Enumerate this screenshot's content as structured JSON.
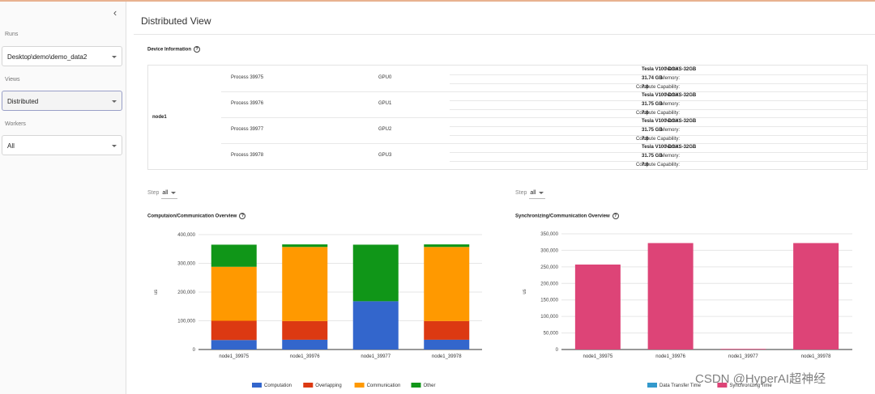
{
  "sidebar": {
    "collapse_icon": "chevron-left-icon",
    "runs_label": "Runs",
    "runs_value": "Desktop\\demo\\demo_data2",
    "views_label": "Views",
    "views_value": "Distributed",
    "workers_label": "Workers",
    "workers_value": "All"
  },
  "page": {
    "title": "Distributed View",
    "device_info_title": "Device Information"
  },
  "device_info": {
    "node": "node1",
    "name_key": "Name:",
    "memory_key": "Memory:",
    "cc_key": "Compute Capability:",
    "processes": [
      {
        "process": "Process 39975",
        "gpu": "GPU0",
        "name": "Tesla V100-DGXS-32GB",
        "memory": "31.74 GB",
        "cc": "7.0"
      },
      {
        "process": "Process 39976",
        "gpu": "GPU1",
        "name": "Tesla V100-DGXS-32GB",
        "memory": "31.75 GB",
        "cc": "7.0"
      },
      {
        "process": "Process 39977",
        "gpu": "GPU2",
        "name": "Tesla V100-DGXS-32GB",
        "memory": "31.75 GB",
        "cc": "7.0"
      },
      {
        "process": "Process 39978",
        "gpu": "GPU3",
        "name": "Tesla V100-DGXS-32GB",
        "memory": "31.75 GB",
        "cc": "7.0"
      }
    ]
  },
  "step_left": {
    "label": "Step",
    "value": "all"
  },
  "step_right": {
    "label": "Step",
    "value": "all"
  },
  "colors": {
    "computation": "#3366cc",
    "overlapping": "#dc3912",
    "communication": "#ff9900",
    "other": "#109618",
    "data_transfer": "#3399cc",
    "synchronizing": "#dd4477"
  },
  "chart_data": [
    {
      "type": "bar",
      "stacked": true,
      "title": "Computaion/Communication Overview",
      "ylabel": "us",
      "xlabel": "",
      "ylim": [
        0,
        400000
      ],
      "yticks": [
        0,
        100000,
        200000,
        300000,
        400000
      ],
      "ytick_labels": [
        "0",
        "100,000",
        "200,000",
        "300,000",
        "400,000"
      ],
      "categories": [
        "node1_39975",
        "node1_39976",
        "node1_39977",
        "node1_39978"
      ],
      "series": [
        {
          "name": "Computation",
          "values": [
            33000,
            34000,
            168000,
            34000
          ]
        },
        {
          "name": "Overlapping",
          "values": [
            67000,
            65000,
            0,
            65000
          ]
        },
        {
          "name": "Communication",
          "values": [
            188000,
            258000,
            0,
            258000
          ]
        },
        {
          "name": "Other",
          "values": [
            77000,
            9000,
            197000,
            9000
          ]
        }
      ],
      "legend": "bottom"
    },
    {
      "type": "bar",
      "stacked": true,
      "title": "Synchronizing/Communication Overview",
      "ylabel": "us",
      "xlabel": "",
      "ylim": [
        0,
        350000
      ],
      "yticks": [
        0,
        50000,
        100000,
        150000,
        200000,
        250000,
        300000,
        350000
      ],
      "ytick_labels": [
        "0",
        "50,000",
        "100,000",
        "150,000",
        "200,000",
        "250,000",
        "300,000",
        "350,000"
      ],
      "categories": [
        "node1_39975",
        "node1_39976",
        "node1_39977",
        "node1_39978"
      ],
      "series": [
        {
          "name": "Data Transfer Time",
          "values": [
            0,
            0,
            0,
            0
          ]
        },
        {
          "name": "Synchronizing Time",
          "values": [
            257000,
            322000,
            2000,
            322000
          ]
        }
      ],
      "legend": "bottom"
    }
  ],
  "watermark": "CSDN @HyperAI超神经"
}
